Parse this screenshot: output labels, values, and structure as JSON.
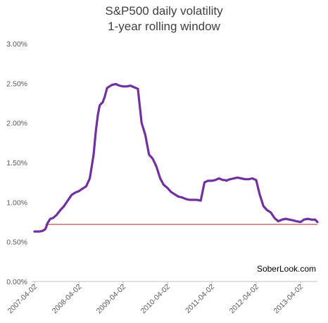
{
  "chart_data": {
    "type": "line",
    "title": "S&P500 daily volatility",
    "subtitle": "1-year rolling window",
    "xlabel": "",
    "ylabel": "",
    "ylim": [
      0,
      3.0
    ],
    "yticks": [
      "0.00%",
      "0.50%",
      "1.00%",
      "1.50%",
      "2.00%",
      "2.50%",
      "3.00%"
    ],
    "ytick_values": [
      0,
      0.5,
      1.0,
      1.5,
      2.0,
      2.5,
      3.0
    ],
    "xlim": [
      "2007-04-02",
      "2013-08-20"
    ],
    "xticks": [
      "2007-04-02",
      "2008-04-02",
      "2009-04-02",
      "2010-04-02",
      "2011-04-02",
      "2012-04-02",
      "2013-04-02"
    ],
    "grid": false,
    "legend": "none",
    "series": [
      {
        "color": "#7030a0",
        "x": [
          "2007-04-02",
          "2007-05-15",
          "2007-06-10",
          "2007-07-01",
          "2007-07-20",
          "2007-08-10",
          "2007-09-01",
          "2007-10-01",
          "2007-11-01",
          "2007-12-01",
          "2008-01-01",
          "2008-02-01",
          "2008-03-01",
          "2008-04-02",
          "2008-05-01",
          "2008-06-01",
          "2008-07-01",
          "2008-08-01",
          "2008-08-20",
          "2008-09-05",
          "2008-09-20",
          "2008-10-01",
          "2008-10-15",
          "2008-11-01",
          "2008-11-20",
          "2008-12-10",
          "2009-01-01",
          "2009-02-01",
          "2009-03-01",
          "2009-04-02",
          "2009-05-01",
          "2009-06-01",
          "2009-07-01",
          "2009-08-01",
          "2009-09-01",
          "2009-10-01",
          "2009-11-01",
          "2009-12-01",
          "2010-01-01",
          "2010-02-01",
          "2010-03-01",
          "2010-04-02",
          "2010-05-01",
          "2010-06-01",
          "2010-07-01",
          "2010-08-01",
          "2010-09-01",
          "2010-10-01",
          "2010-11-01",
          "2010-12-01",
          "2011-01-01",
          "2011-02-01",
          "2011-03-01",
          "2011-04-02",
          "2011-05-01",
          "2011-06-01",
          "2011-07-01",
          "2011-07-20",
          "2011-08-01",
          "2011-08-10",
          "2011-09-01",
          "2011-10-01",
          "2011-11-01",
          "2011-12-01",
          "2012-01-01",
          "2012-02-01",
          "2012-03-01",
          "2012-04-02",
          "2012-05-01",
          "2012-06-01",
          "2012-07-01",
          "2012-08-01",
          "2012-09-01",
          "2012-10-01",
          "2012-11-01",
          "2012-12-01",
          "2013-01-01",
          "2013-02-01",
          "2013-03-01",
          "2013-04-02",
          "2013-05-01",
          "2013-06-01",
          "2013-07-01",
          "2013-08-01",
          "2013-08-20"
        ],
        "values": [
          0.63,
          0.63,
          0.64,
          0.66,
          0.74,
          0.79,
          0.8,
          0.84,
          0.9,
          0.95,
          1.02,
          1.09,
          1.12,
          1.14,
          1.17,
          1.2,
          1.3,
          1.6,
          1.9,
          2.1,
          2.22,
          2.24,
          2.26,
          2.33,
          2.44,
          2.46,
          2.48,
          2.49,
          2.47,
          2.46,
          2.46,
          2.47,
          2.45,
          2.43,
          2.0,
          1.85,
          1.6,
          1.55,
          1.45,
          1.3,
          1.22,
          1.18,
          1.13,
          1.1,
          1.07,
          1.06,
          1.04,
          1.03,
          1.03,
          1.03,
          1.02,
          1.25,
          1.27,
          1.27,
          1.28,
          1.3,
          1.28,
          1.28,
          1.27,
          1.28,
          1.29,
          1.3,
          1.31,
          1.3,
          1.29,
          1.29,
          1.3,
          1.28,
          1.1,
          0.95,
          0.9,
          0.87,
          0.8,
          0.76,
          0.78,
          0.79,
          0.78,
          0.77,
          0.76,
          0.75,
          0.78,
          0.79,
          0.78,
          0.78,
          0.75
        ]
      }
    ],
    "reference_line": {
      "value": 0.72,
      "color": "#c0504d"
    },
    "annotations": [
      "SoberLook.com"
    ]
  }
}
